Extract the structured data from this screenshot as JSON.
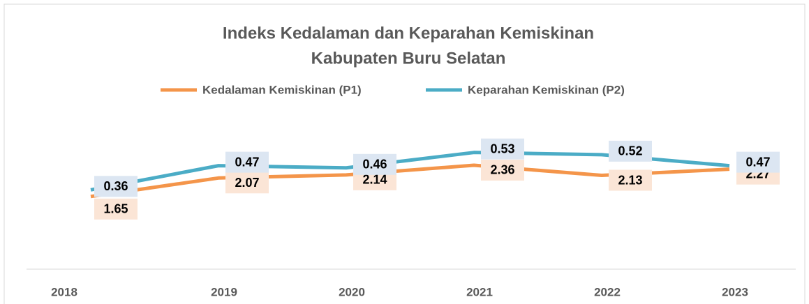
{
  "chart_data": {
    "type": "line",
    "title": [
      "Indeks Kedalaman dan Keparahan Kemiskinan",
      "Kabupaten Buru Selatan"
    ],
    "categories": [
      "2018",
      "2019",
      "2020",
      "2021",
      "2022",
      "2023"
    ],
    "series": [
      {
        "name": "Kedalaman Kemiskinan (P1)",
        "color": "#f4954a",
        "label_color": "#fbe5d6",
        "values": [
          1.65,
          2.07,
          2.14,
          2.36,
          2.13,
          2.27
        ]
      },
      {
        "name": "Keparahan Kemiskinan (P2)",
        "color": "#4bacc6",
        "label_color": "#dce6f2",
        "axis": "y2",
        "values": [
          0.36,
          0.47,
          0.46,
          0.53,
          0.52,
          0.47
        ]
      }
    ],
    "ylim": [
      0,
      3.5
    ],
    "y2lim": [
      0,
      0.7
    ],
    "legend": "top",
    "grid": false
  }
}
